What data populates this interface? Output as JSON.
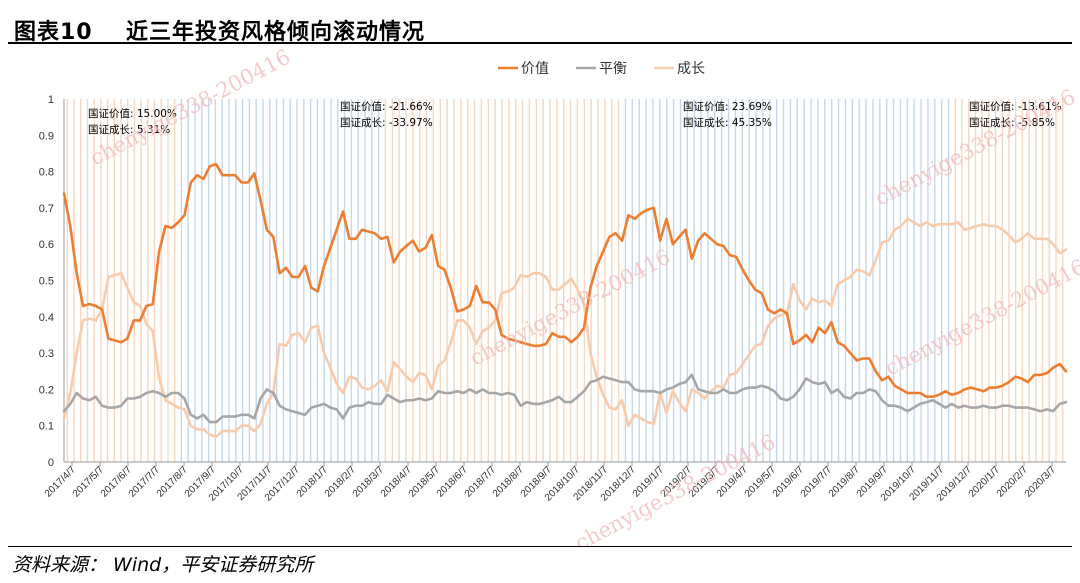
{
  "figure": {
    "number": "图表10",
    "title": "近三年投资风格倾向滚动情况",
    "source": "资料来源： Wind，平安证券研究所",
    "watermark": "chenyige338-200416"
  },
  "colors": {
    "value": "#ED7D31",
    "balance": "#A6A6A6",
    "growth": "#F8CBAD",
    "stripe_blue": "#C5D7EA",
    "stripe_orange": "#F7D6C0",
    "watermark": "#F2B8B8"
  },
  "chart_data": {
    "type": "line",
    "ylim": [
      0,
      1
    ],
    "yticks": [
      "0",
      "0.1",
      "0.2",
      "0.3",
      "0.4",
      "0.5",
      "0.6",
      "0.7",
      "0.8",
      "0.9",
      "1"
    ],
    "xtick_labels": [
      "2017/4/7",
      "2017/5/7",
      "2017/6/7",
      "2017/7/7",
      "2017/8/7",
      "2017/9/7",
      "2017/10/7",
      "2017/11/7",
      "2017/12/7",
      "2018/1/7",
      "2018/2/7",
      "2018/3/7",
      "2018/4/7",
      "2018/5/7",
      "2018/6/7",
      "2018/7/7",
      "2018/8/7",
      "2018/9/7",
      "2018/10/7",
      "2018/11/7",
      "2018/12/7",
      "2019/1/7",
      "2019/2/7",
      "2019/3/7",
      "2019/4/7",
      "2019/5/7",
      "2019/6/7",
      "2019/7/7",
      "2019/8/7",
      "2019/9/7",
      "2019/10/7",
      "2019/11/7",
      "2019/12/7",
      "2020/1/7",
      "2020/2/7",
      "2020/3/7"
    ],
    "legend_position": "top-center",
    "series": [
      {
        "name": "价值",
        "key": "value",
        "values": [
          0.74,
          0.65,
          0.52,
          0.43,
          0.435,
          0.43,
          0.42,
          0.34,
          0.335,
          0.33,
          0.34,
          0.39,
          0.39,
          0.43,
          0.435,
          0.58,
          0.65,
          0.645,
          0.66,
          0.68,
          0.77,
          0.79,
          0.78,
          0.815,
          0.82,
          0.79,
          0.79,
          0.79,
          0.77,
          0.77,
          0.795,
          0.72,
          0.64,
          0.62,
          0.52,
          0.535,
          0.51,
          0.51,
          0.54,
          0.48,
          0.47,
          0.54,
          0.59,
          0.64,
          0.69,
          0.615,
          0.615,
          0.64,
          0.635,
          0.63,
          0.615,
          0.62,
          0.55,
          0.58,
          0.595,
          0.61,
          0.58,
          0.59,
          0.625,
          0.54,
          0.53,
          0.48,
          0.415,
          0.42,
          0.43,
          0.485,
          0.44,
          0.44,
          0.42,
          0.35,
          0.34,
          0.335,
          0.33,
          0.325,
          0.32,
          0.32,
          0.325,
          0.355,
          0.345,
          0.345,
          0.33,
          0.345,
          0.37,
          0.48,
          0.54,
          0.58,
          0.62,
          0.63,
          0.61,
          0.68,
          0.67,
          0.685,
          0.695,
          0.7,
          0.61,
          0.67,
          0.6,
          0.62,
          0.64,
          0.56,
          0.61,
          0.63,
          0.615,
          0.6,
          0.595,
          0.57,
          0.565,
          0.53,
          0.5,
          0.475,
          0.465,
          0.42,
          0.41,
          0.42,
          0.41,
          0.325,
          0.335,
          0.35,
          0.33,
          0.37,
          0.355,
          0.385,
          0.33,
          0.32,
          0.3,
          0.28,
          0.285,
          0.285,
          0.25,
          0.225,
          0.235,
          0.21,
          0.2,
          0.19,
          0.19,
          0.19,
          0.18,
          0.18,
          0.185,
          0.195,
          0.185,
          0.19,
          0.2,
          0.205,
          0.2,
          0.195,
          0.205,
          0.205,
          0.21,
          0.22,
          0.235,
          0.23,
          0.22,
          0.24,
          0.24,
          0.245,
          0.26,
          0.27,
          0.25
        ]
      },
      {
        "name": "平衡",
        "key": "balance",
        "values": [
          0.14,
          0.16,
          0.19,
          0.175,
          0.17,
          0.18,
          0.155,
          0.15,
          0.15,
          0.155,
          0.175,
          0.175,
          0.18,
          0.19,
          0.195,
          0.19,
          0.18,
          0.19,
          0.19,
          0.175,
          0.13,
          0.12,
          0.13,
          0.11,
          0.11,
          0.125,
          0.125,
          0.125,
          0.13,
          0.13,
          0.12,
          0.175,
          0.2,
          0.19,
          0.155,
          0.145,
          0.14,
          0.135,
          0.13,
          0.15,
          0.155,
          0.16,
          0.15,
          0.145,
          0.12,
          0.15,
          0.155,
          0.155,
          0.165,
          0.16,
          0.16,
          0.185,
          0.175,
          0.165,
          0.17,
          0.17,
          0.175,
          0.17,
          0.175,
          0.195,
          0.19,
          0.19,
          0.195,
          0.19,
          0.2,
          0.19,
          0.2,
          0.19,
          0.19,
          0.185,
          0.19,
          0.185,
          0.155,
          0.165,
          0.16,
          0.16,
          0.165,
          0.17,
          0.18,
          0.165,
          0.165,
          0.18,
          0.195,
          0.22,
          0.225,
          0.235,
          0.23,
          0.225,
          0.22,
          0.22,
          0.2,
          0.195,
          0.195,
          0.195,
          0.19,
          0.2,
          0.205,
          0.215,
          0.22,
          0.24,
          0.2,
          0.195,
          0.19,
          0.19,
          0.2,
          0.19,
          0.19,
          0.2,
          0.205,
          0.205,
          0.21,
          0.205,
          0.195,
          0.175,
          0.17,
          0.18,
          0.2,
          0.23,
          0.22,
          0.215,
          0.22,
          0.19,
          0.2,
          0.18,
          0.175,
          0.19,
          0.19,
          0.2,
          0.195,
          0.17,
          0.155,
          0.155,
          0.15,
          0.14,
          0.15,
          0.16,
          0.165,
          0.17,
          0.16,
          0.15,
          0.16,
          0.15,
          0.155,
          0.15,
          0.15,
          0.155,
          0.15,
          0.15,
          0.155,
          0.155,
          0.15,
          0.15,
          0.15,
          0.145,
          0.14,
          0.145,
          0.14,
          0.16,
          0.165
        ]
      },
      {
        "name": "成长",
        "key": "growth",
        "values": [
          0.12,
          0.19,
          0.3,
          0.39,
          0.395,
          0.39,
          0.42,
          0.51,
          0.515,
          0.52,
          0.48,
          0.44,
          0.43,
          0.38,
          0.36,
          0.23,
          0.17,
          0.16,
          0.15,
          0.145,
          0.1,
          0.09,
          0.09,
          0.075,
          0.07,
          0.085,
          0.085,
          0.085,
          0.1,
          0.1,
          0.085,
          0.105,
          0.16,
          0.19,
          0.325,
          0.32,
          0.35,
          0.355,
          0.33,
          0.37,
          0.375,
          0.3,
          0.26,
          0.215,
          0.19,
          0.235,
          0.23,
          0.205,
          0.2,
          0.21,
          0.225,
          0.195,
          0.275,
          0.255,
          0.235,
          0.22,
          0.245,
          0.24,
          0.2,
          0.265,
          0.28,
          0.33,
          0.39,
          0.39,
          0.37,
          0.325,
          0.36,
          0.37,
          0.39,
          0.465,
          0.47,
          0.48,
          0.515,
          0.51,
          0.52,
          0.52,
          0.51,
          0.475,
          0.475,
          0.49,
          0.505,
          0.475,
          0.435,
          0.3,
          0.235,
          0.185,
          0.15,
          0.145,
          0.17,
          0.1,
          0.13,
          0.12,
          0.11,
          0.105,
          0.19,
          0.135,
          0.195,
          0.165,
          0.14,
          0.2,
          0.19,
          0.175,
          0.195,
          0.21,
          0.205,
          0.24,
          0.245,
          0.27,
          0.295,
          0.32,
          0.325,
          0.375,
          0.395,
          0.405,
          0.41,
          0.49,
          0.445,
          0.42,
          0.45,
          0.44,
          0.445,
          0.43,
          0.49,
          0.5,
          0.51,
          0.53,
          0.525,
          0.515,
          0.555,
          0.605,
          0.61,
          0.64,
          0.65,
          0.67,
          0.66,
          0.65,
          0.66,
          0.65,
          0.655,
          0.655,
          0.655,
          0.66,
          0.64,
          0.645,
          0.65,
          0.655,
          0.65,
          0.65,
          0.64,
          0.625,
          0.605,
          0.615,
          0.63,
          0.615,
          0.615,
          0.615,
          0.6,
          0.575,
          0.585
        ]
      }
    ],
    "annotations": [
      {
        "lines": [
          "国证价值: 15.00%",
          "国证成长: 5.31%"
        ]
      },
      {
        "lines": [
          "国证价值: -21.66%",
          "国证成长: -33.97%"
        ]
      },
      {
        "lines": [
          "国证价值: 23.69%",
          "国证成长: 45.35%"
        ]
      },
      {
        "lines": [
          "国证价值: -13.61%",
          "国证成长: -5.85%"
        ]
      }
    ]
  }
}
